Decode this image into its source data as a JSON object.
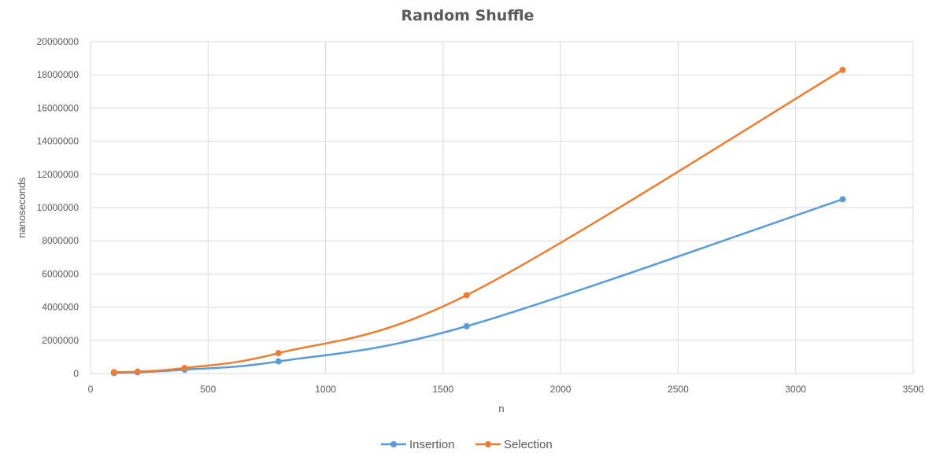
{
  "chart_data": {
    "type": "line",
    "title": "Random Shuffle",
    "xlabel": "n",
    "ylabel": "nanoseconds",
    "xlim": [
      0,
      3500
    ],
    "ylim": [
      0,
      20000000
    ],
    "x_ticks": [
      0,
      500,
      1000,
      1500,
      2000,
      2500,
      3000,
      3500
    ],
    "y_ticks": [
      0,
      2000000,
      4000000,
      6000000,
      8000000,
      10000000,
      12000000,
      14000000,
      16000000,
      18000000,
      20000000
    ],
    "x_tick_labels": [
      "0",
      "500",
      "1000",
      "1500",
      "2000",
      "2500",
      "3000",
      "3500"
    ],
    "y_tick_labels": [
      "0",
      "2000000",
      "4000000",
      "6000000",
      "8000000",
      "10000000",
      "12000000",
      "14000000",
      "16000000",
      "18000000",
      "20000000"
    ],
    "grid": true,
    "smooth": true,
    "legend_position": "bottom",
    "series": [
      {
        "name": "Insertion",
        "color": "#5B9BD5",
        "points": [
          [
            100,
            30000
          ],
          [
            200,
            70000
          ],
          [
            400,
            230000
          ],
          [
            800,
            730000
          ],
          [
            1600,
            2850000
          ],
          [
            3200,
            10500000
          ]
        ]
      },
      {
        "name": "Selection",
        "color": "#ED7D31",
        "points": [
          [
            100,
            80000
          ],
          [
            200,
            110000
          ],
          [
            400,
            330000
          ],
          [
            800,
            1230000
          ],
          [
            1600,
            4720000
          ],
          [
            3200,
            18300000
          ]
        ]
      }
    ]
  }
}
